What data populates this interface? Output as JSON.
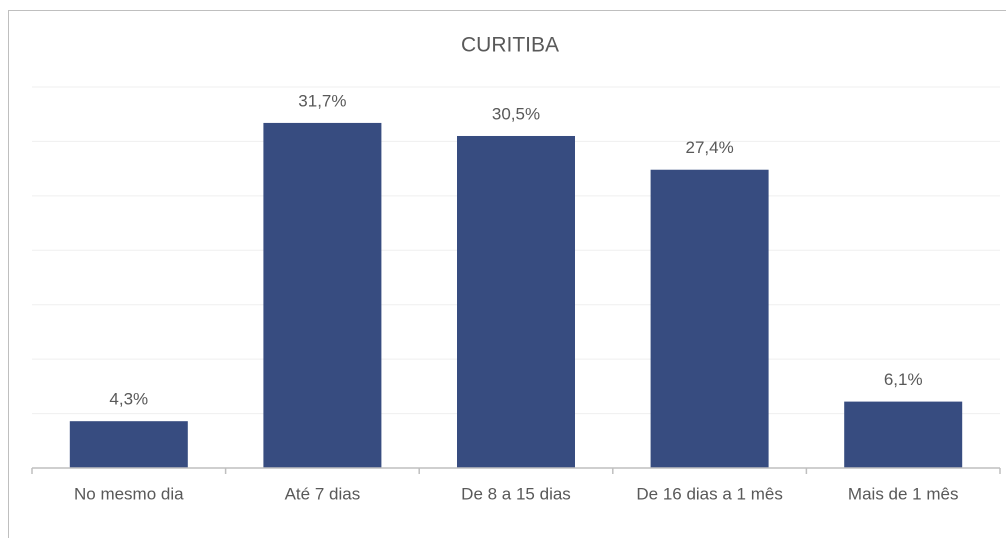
{
  "chart_data": {
    "type": "bar",
    "title": "CURITIBA",
    "categories": [
      "No mesmo dia",
      "Até 7 dias",
      "De 8 a 15 dias",
      "De 16 dias a 1 mês",
      "Mais de 1 mês"
    ],
    "values": [
      4.3,
      31.7,
      30.5,
      27.4,
      6.1
    ],
    "value_labels": [
      "4,3%",
      "31,7%",
      "30,5%",
      "27,4%",
      "6,1%"
    ],
    "color": "#374c80",
    "ylim": [
      0,
      35
    ],
    "yticks": [
      0,
      5,
      10,
      15,
      20,
      25,
      30,
      35
    ],
    "grid": true
  }
}
